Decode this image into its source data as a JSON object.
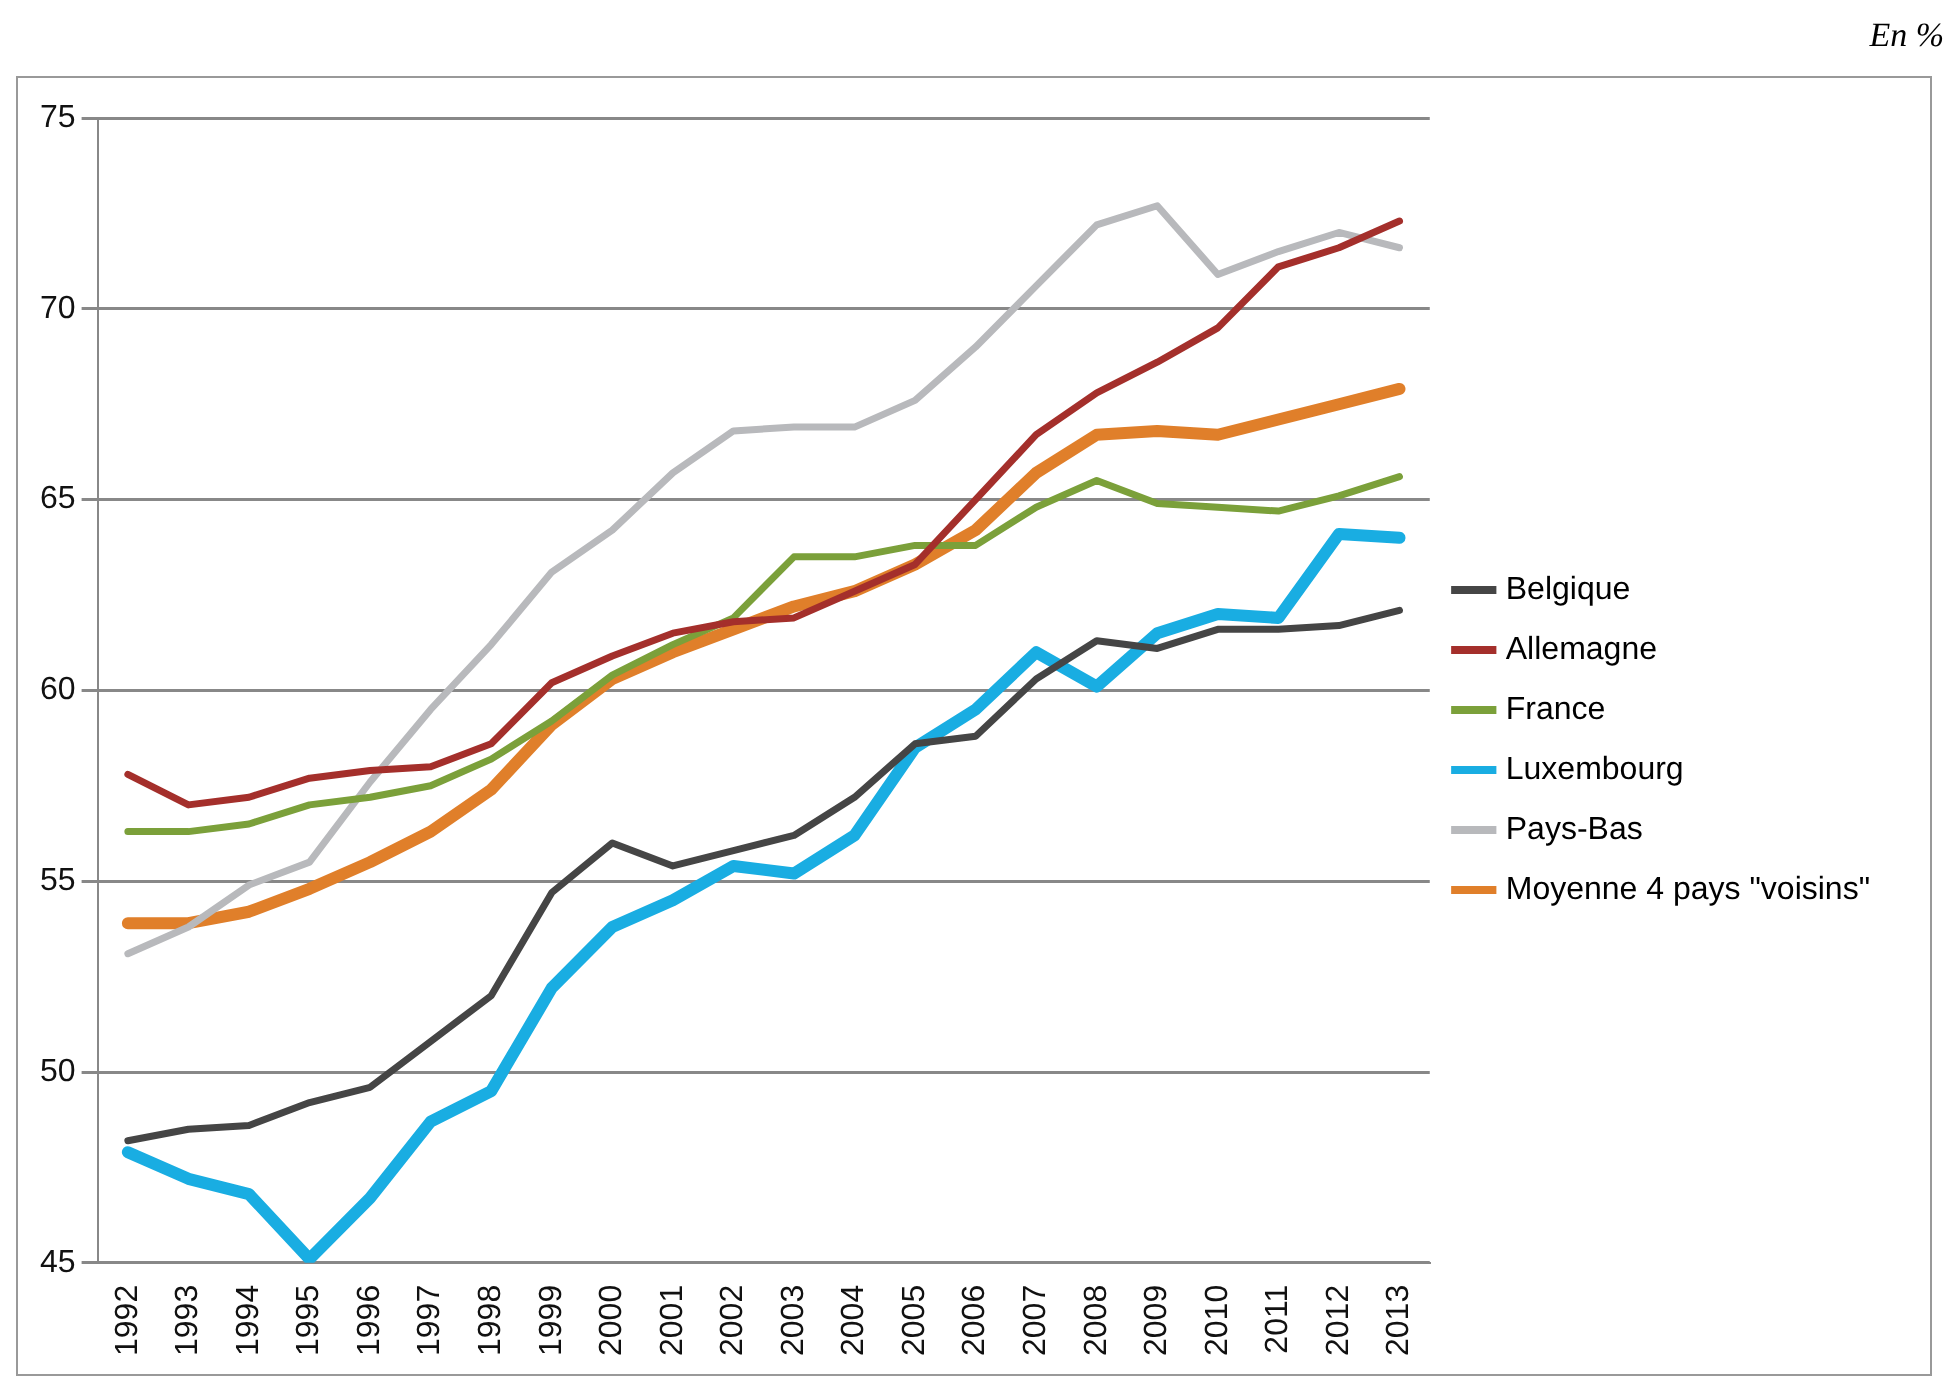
{
  "chart_data": {
    "type": "line",
    "categories": [
      "1992",
      "1993",
      "1994",
      "1995",
      "1996",
      "1997",
      "1998",
      "1999",
      "2000",
      "2001",
      "2002",
      "2003",
      "2004",
      "2005",
      "2006",
      "2007",
      "2008",
      "2009",
      "2010",
      "2011",
      "2012",
      "2013"
    ],
    "series": [
      {
        "name": "Belgique",
        "color": "#454545",
        "values": [
          48.2,
          48.5,
          48.6,
          49.2,
          49.6,
          50.8,
          52.0,
          54.7,
          56.0,
          55.4,
          55.8,
          56.2,
          57.2,
          58.6,
          58.8,
          60.3,
          61.3,
          61.1,
          61.6,
          61.6,
          61.7,
          62.1
        ]
      },
      {
        "name": "Allemagne",
        "color": "#a42f2b",
        "values": [
          57.8,
          57.0,
          57.2,
          57.7,
          57.9,
          58.0,
          58.6,
          60.2,
          60.9,
          61.5,
          61.8,
          61.9,
          62.6,
          63.3,
          65.0,
          66.7,
          67.8,
          68.6,
          69.5,
          71.1,
          71.6,
          72.3
        ]
      },
      {
        "name": "France",
        "color": "#7ba03a",
        "values": [
          56.3,
          56.3,
          56.5,
          57.0,
          57.2,
          57.5,
          58.2,
          59.2,
          60.4,
          61.2,
          61.9,
          63.5,
          63.5,
          63.8,
          63.8,
          64.8,
          65.5,
          64.9,
          64.8,
          64.7,
          65.1,
          65.6
        ]
      },
      {
        "name": "Luxembourg",
        "color": "#19ade2",
        "values": [
          47.9,
          47.2,
          46.8,
          45.1,
          46.7,
          48.7,
          49.5,
          52.2,
          53.8,
          54.5,
          55.4,
          55.2,
          56.2,
          58.5,
          59.5,
          61.0,
          60.1,
          61.5,
          62.0,
          61.9,
          64.1,
          64.0
        ]
      },
      {
        "name": "Pays-Bas",
        "color": "#b8b9bc",
        "values": [
          53.1,
          53.8,
          54.9,
          55.5,
          57.6,
          59.5,
          61.2,
          63.1,
          64.2,
          65.7,
          66.8,
          66.9,
          66.9,
          67.6,
          69.0,
          70.6,
          72.2,
          72.7,
          70.9,
          71.5,
          72.0,
          71.6
        ]
      },
      {
        "name": "Moyenne 4 pays \"voisins\"",
        "color": "#e07f2a",
        "values": [
          53.9,
          53.9,
          54.2,
          54.8,
          55.5,
          56.3,
          57.4,
          59.1,
          60.3,
          61.0,
          61.6,
          62.2,
          62.6,
          63.3,
          64.2,
          65.7,
          66.7,
          66.8,
          66.7,
          67.1,
          67.5,
          67.9
        ]
      }
    ],
    "ylim": [
      45,
      75
    ],
    "yticks": [
      45,
      50,
      55,
      60,
      65,
      70,
      75
    ],
    "grid": "y",
    "legend": "right",
    "marker": "none",
    "line_style": "solid",
    "annotations": [
      "En %"
    ]
  }
}
